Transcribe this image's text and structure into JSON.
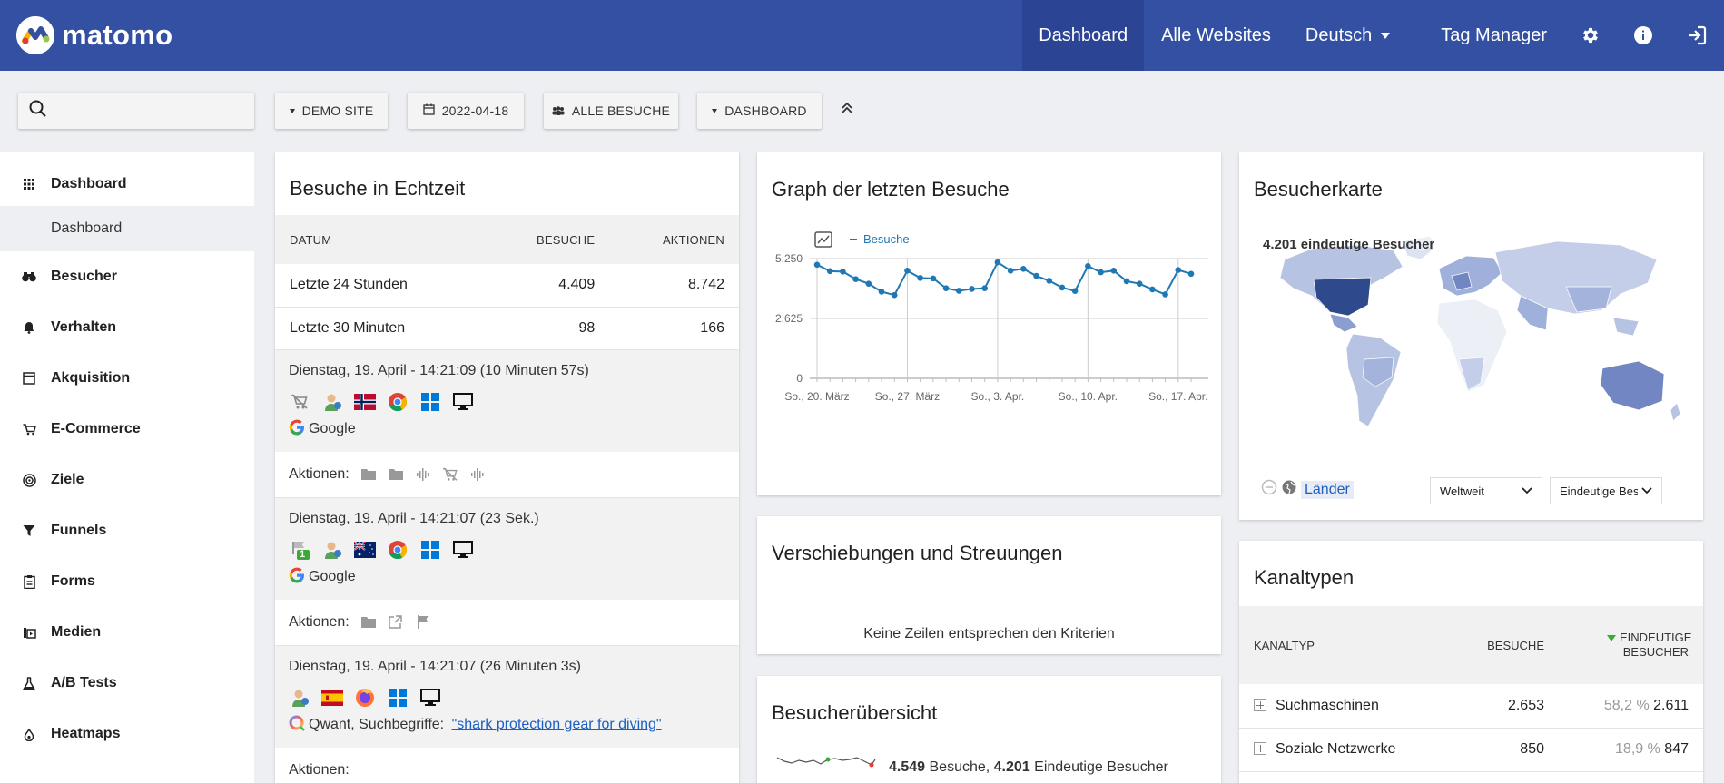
{
  "brand": {
    "name": "matomo"
  },
  "nav": {
    "items": [
      {
        "label": "Dashboard",
        "active": true
      },
      {
        "label": "Alle Websites"
      },
      {
        "label": "Deutsch"
      },
      {
        "label": "Tag Manager"
      }
    ],
    "icons": [
      "gear-icon",
      "info-icon",
      "logout-icon"
    ]
  },
  "toolbar": {
    "search_placeholder": "",
    "site": "DEMO SITE",
    "date": "2022-04-18",
    "segment": "ALLE BESUCHE",
    "dashboard": "DASHBOARD"
  },
  "sidebar": {
    "items": [
      {
        "label": "Dashboard",
        "icon": "grid-icon"
      },
      {
        "label": "Besucher",
        "icon": "binoculars-icon"
      },
      {
        "label": "Verhalten",
        "icon": "bell-icon"
      },
      {
        "label": "Akquisition",
        "icon": "window-icon"
      },
      {
        "label": "E-Commerce",
        "icon": "cart-icon"
      },
      {
        "label": "Ziele",
        "icon": "target-icon"
      },
      {
        "label": "Funnels",
        "icon": "funnel-icon"
      },
      {
        "label": "Forms",
        "icon": "form-icon"
      },
      {
        "label": "Medien",
        "icon": "media-icon"
      },
      {
        "label": "A/B Tests",
        "icon": "flask-icon"
      },
      {
        "label": "Heatmaps",
        "icon": "flame-icon"
      }
    ],
    "sub_item": "Dashboard"
  },
  "realtime": {
    "title": "Besuche in Echtzeit",
    "headers": {
      "date": "DATUM",
      "visits": "BESUCHE",
      "actions": "AKTIONEN"
    },
    "rows": [
      {
        "label": "Letzte 24 Stunden",
        "visits": "4.409",
        "actions": "8.742"
      },
      {
        "label": "Letzte 30 Minuten",
        "visits": "98",
        "actions": "166"
      }
    ],
    "visits": [
      {
        "date": "Dienstag, 19. April - 14:21:09 (10 Minuten 57s)",
        "referrer": "Google",
        "flag": "norway",
        "actions_label": "Aktionen:"
      },
      {
        "date": "Dienstag, 19. April - 14:21:07 (23 Sek.)",
        "referrer": "Google",
        "flag": "australia",
        "badge": "1",
        "actions_label": "Aktionen:"
      },
      {
        "date": "Dienstag, 19. April - 14:21:07 (26 Minuten 3s)",
        "referrer_prefix": "Qwant, Suchbegriffe: ",
        "keyword": "\"shark protection gear for diving\"",
        "flag": "spain",
        "actions_label": "Aktionen:"
      }
    ]
  },
  "graph": {
    "title": "Graph der letzten Besuche",
    "legend": "Besuche"
  },
  "chart_data": {
    "type": "line",
    "title": "Graph der letzten Besuche",
    "series": [
      {
        "name": "Besuche",
        "values": [
          4980,
          4700,
          4680,
          4350,
          4150,
          3800,
          3650,
          4720,
          4400,
          4380,
          3950,
          3840,
          3920,
          3950,
          5090,
          4720,
          4800,
          4490,
          4280,
          3980,
          3830,
          4920,
          4650,
          4720,
          4260,
          4150,
          3900,
          3680,
          4750,
          4580
        ]
      }
    ],
    "x_tick_labels": [
      "So., 20. März",
      "So., 27. März",
      "So., 3. Apr.",
      "So., 10. Apr.",
      "So., 17. Apr."
    ],
    "y_ticks": [
      "0",
      "2.625",
      "5.250"
    ],
    "ylim": [
      0,
      5250
    ]
  },
  "shifts": {
    "title": "Verschiebungen und Streuungen",
    "empty": "Keine Zeilen entsprechen den Kriterien"
  },
  "overview": {
    "title": "Besucherübersicht",
    "visits_num": "4.549",
    "visits_label": "Besuche",
    "unique_num": "4.201",
    "unique_label": "Eindeutige Besucher"
  },
  "map": {
    "title": "Besucherkarte",
    "subtitle": "4.201 eindeutige Besucher",
    "countries_link": "Länder",
    "region": "Weltweit",
    "metric": "Eindeutige Besucher"
  },
  "channels": {
    "title": "Kanaltypen",
    "headers": {
      "type": "KANALTYP",
      "visits": "BESUCHE",
      "unique": "EINDEUTIGE BESUCHER"
    },
    "rows": [
      {
        "label": "Suchmaschinen",
        "visits": "2.653",
        "pct": "58,2 %",
        "unique": "2.611"
      },
      {
        "label": "Soziale Netzwerke",
        "visits": "850",
        "pct": "18,9 %",
        "unique": "847"
      }
    ]
  }
}
